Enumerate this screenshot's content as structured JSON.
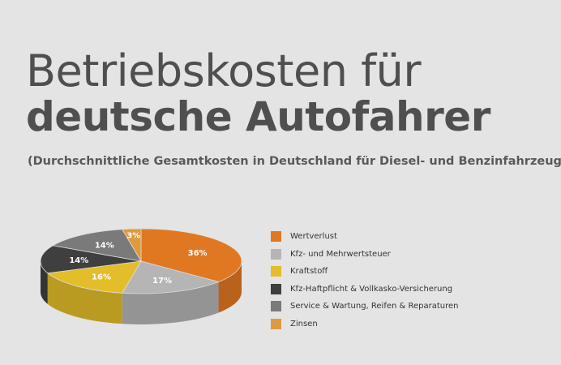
{
  "header": {
    "title_line1": "Betriebskosten für",
    "title_line2": "deutsche Autofahrer",
    "subtitle": "(Durchschnittliche Gesamtkosten in Deutschland für Diesel- und Benzinfahrzeuge)"
  },
  "chart_data": {
    "type": "pie",
    "title": "",
    "categories": [
      "Wertverlust",
      "Kfz- und Mehrwertsteuer",
      "Kraftstoff",
      "Kfz-Haftpflicht & Vollkasko-Versicherung",
      "Service & Wartung, Reifen & Reparaturen",
      "Zinsen"
    ],
    "values": [
      36,
      17,
      16,
      14,
      14,
      3
    ],
    "labels": [
      "36%",
      "17%",
      "16%",
      "14%",
      "14%",
      "3%"
    ],
    "colors": [
      "#e07822",
      "#b5b5b5",
      "#e3bd2a",
      "#3f3f3f",
      "#7a7a7a",
      "#de9a3e"
    ],
    "legend_position": "right"
  }
}
